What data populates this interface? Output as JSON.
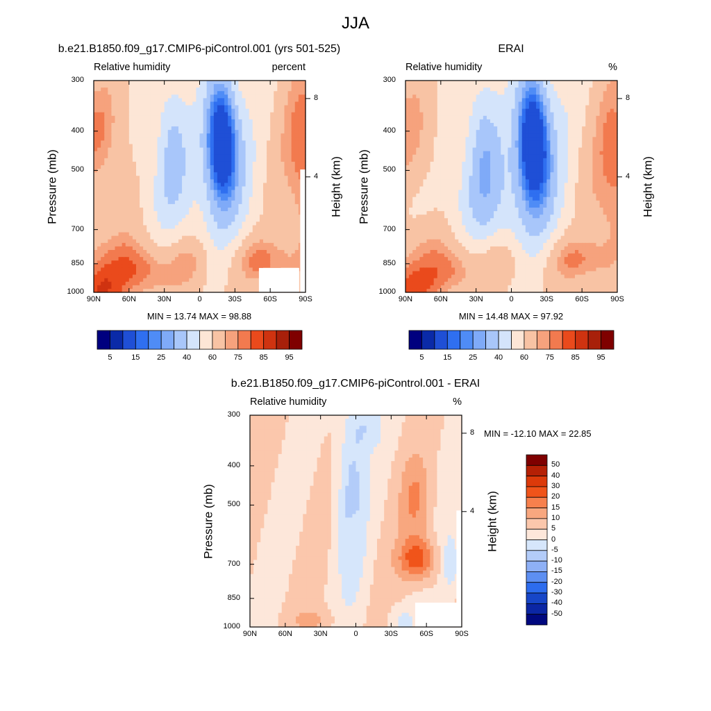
{
  "figure": {
    "title": "JJA"
  },
  "chart_data": [
    {
      "type": "heatmap",
      "title": "b.e21.B1850.f09_g17.CMIP6-piControl.001 (yrs 501-525)",
      "left_string": "Relative humidity",
      "right_string": "percent",
      "xlabel": "",
      "ylabel": "Pressure (mb)",
      "y2label": "Height (km)",
      "x_ticks": [
        "90N",
        "60N",
        "30N",
        "0",
        "30S",
        "60S",
        "90S"
      ],
      "y_ticks": [
        "300",
        "400",
        "500",
        "700",
        "850",
        "1000"
      ],
      "y2_ticks": [
        "8",
        "4"
      ],
      "ylim": [
        1000,
        300
      ],
      "min_max_text": "MIN =  13.74  MAX =  98.88",
      "min": 13.74,
      "max": 98.88,
      "colorbar_labels": [
        "5",
        "15",
        "25",
        "40",
        "60",
        "75",
        "85",
        "95"
      ],
      "legend_placement": "bottom",
      "colors": [
        "#00007f",
        "#0a2aa8",
        "#1f4fd6",
        "#2f6ff0",
        "#4f8cf6",
        "#7faaf8",
        "#a8c6fa",
        "#d4e4fb",
        "#fde6d6",
        "#f8c3a4",
        "#f6a27d",
        "#f27a4f",
        "#ea4a1c",
        "#cf3310",
        "#a8200a",
        "#7f0000"
      ]
    },
    {
      "type": "heatmap",
      "title": "ERAI",
      "left_string": "Relative humidity",
      "right_string": "%",
      "xlabel": "",
      "ylabel": "Pressure (mb)",
      "y2label": "Height (km)",
      "x_ticks": [
        "90N",
        "60N",
        "30N",
        "0",
        "30S",
        "60S",
        "90S"
      ],
      "y_ticks": [
        "300",
        "400",
        "500",
        "700",
        "850",
        "1000"
      ],
      "y2_ticks": [
        "8",
        "4"
      ],
      "ylim": [
        1000,
        300
      ],
      "min_max_text": "MIN =  14.48  MAX =  97.92",
      "min": 14.48,
      "max": 97.92,
      "colorbar_labels": [
        "5",
        "15",
        "25",
        "40",
        "60",
        "75",
        "85",
        "95"
      ],
      "legend_placement": "bottom",
      "colors": [
        "#00007f",
        "#0a2aa8",
        "#1f4fd6",
        "#2f6ff0",
        "#4f8cf6",
        "#7faaf8",
        "#a8c6fa",
        "#d4e4fb",
        "#fde6d6",
        "#f8c3a4",
        "#f6a27d",
        "#f27a4f",
        "#ea4a1c",
        "#cf3310",
        "#a8200a",
        "#7f0000"
      ]
    },
    {
      "type": "heatmap",
      "title": "b.e21.B1850.f09_g17.CMIP6-piControl.001 - ERAI",
      "left_string": "Relative humidity",
      "right_string": "%",
      "xlabel": "",
      "ylabel": "Pressure (mb)",
      "y2label": "Height (km)",
      "x_ticks": [
        "90N",
        "60N",
        "30N",
        "0",
        "30S",
        "60S",
        "90S"
      ],
      "y_ticks": [
        "300",
        "400",
        "500",
        "700",
        "850",
        "1000"
      ],
      "y2_ticks": [
        "8",
        "4"
      ],
      "ylim": [
        1000,
        300
      ],
      "min_max_text": "MIN = -12.10  MAX =  22.85",
      "min": -12.1,
      "max": 22.85,
      "colorbar_labels": [
        "50",
        "40",
        "30",
        "20",
        "15",
        "10",
        "5",
        "0",
        "-5",
        "-10",
        "-15",
        "-20",
        "-30",
        "-40",
        "-50"
      ],
      "legend_placement": "right",
      "colors": [
        "#7f0000",
        "#b52005",
        "#dc3a0a",
        "#f0541a",
        "#f7804d",
        "#f8a77f",
        "#fbc7ac",
        "#fde7da",
        "#d6e6fb",
        "#b3ccf9",
        "#8eb0f6",
        "#5d8ff2",
        "#2d6cee",
        "#1746c8",
        "#0b26a4",
        "#00087f"
      ]
    }
  ]
}
